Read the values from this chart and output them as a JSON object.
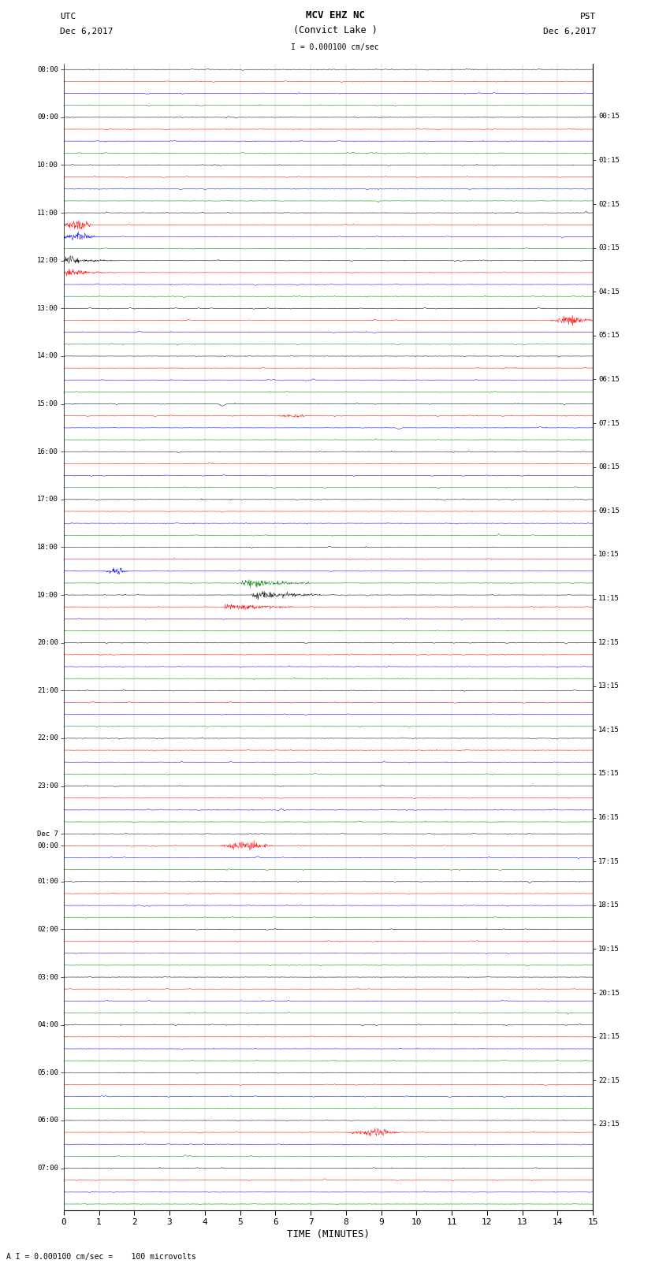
{
  "title_line1": "MCV EHZ NC",
  "title_line2": "(Convict Lake )",
  "scale_label": "I = 0.000100 cm/sec",
  "bottom_label": "A I = 0.000100 cm/sec =    100 microvolts",
  "xlabel": "TIME (MINUTES)",
  "left_header": "UTC",
  "left_date": "Dec 6,2017",
  "right_header": "PST",
  "right_date": "Dec 6,2017",
  "utc_times_with_pos": [
    [
      0,
      "08:00"
    ],
    [
      4,
      "09:00"
    ],
    [
      8,
      "10:00"
    ],
    [
      12,
      "11:00"
    ],
    [
      16,
      "12:00"
    ],
    [
      20,
      "13:00"
    ],
    [
      24,
      "14:00"
    ],
    [
      28,
      "15:00"
    ],
    [
      32,
      "16:00"
    ],
    [
      36,
      "17:00"
    ],
    [
      40,
      "18:00"
    ],
    [
      44,
      "19:00"
    ],
    [
      48,
      "20:00"
    ],
    [
      52,
      "21:00"
    ],
    [
      56,
      "22:00"
    ],
    [
      60,
      "23:00"
    ],
    [
      64,
      "Dec 7"
    ],
    [
      65,
      "00:00"
    ],
    [
      68,
      "01:00"
    ],
    [
      72,
      "02:00"
    ],
    [
      76,
      "03:00"
    ],
    [
      80,
      "04:00"
    ],
    [
      84,
      "05:00"
    ],
    [
      88,
      "06:00"
    ],
    [
      92,
      "07:00"
    ]
  ],
  "pst_times_with_pos": [
    [
      0,
      "00:15"
    ],
    [
      4,
      "01:15"
    ],
    [
      8,
      "02:15"
    ],
    [
      12,
      "03:15"
    ],
    [
      16,
      "04:15"
    ],
    [
      20,
      "05:15"
    ],
    [
      24,
      "06:15"
    ],
    [
      28,
      "07:15"
    ],
    [
      32,
      "08:15"
    ],
    [
      36,
      "09:15"
    ],
    [
      40,
      "10:15"
    ],
    [
      44,
      "11:15"
    ],
    [
      48,
      "12:15"
    ],
    [
      52,
      "13:15"
    ],
    [
      56,
      "14:15"
    ],
    [
      60,
      "15:15"
    ],
    [
      64,
      "16:15"
    ],
    [
      68,
      "17:15"
    ],
    [
      72,
      "18:15"
    ],
    [
      76,
      "19:15"
    ],
    [
      80,
      "20:15"
    ],
    [
      84,
      "21:15"
    ],
    [
      88,
      "22:15"
    ],
    [
      92,
      "23:15"
    ]
  ],
  "trace_colors": [
    "black",
    "red",
    "blue",
    "green"
  ],
  "n_traces": 96,
  "x_min": 0,
  "x_max": 15,
  "x_ticks": [
    0,
    1,
    2,
    3,
    4,
    5,
    6,
    7,
    8,
    9,
    10,
    11,
    12,
    13,
    14,
    15
  ],
  "bg_color": "white",
  "noise_seed": 42,
  "figwidth": 8.5,
  "figheight": 16.13,
  "dpi": 100
}
